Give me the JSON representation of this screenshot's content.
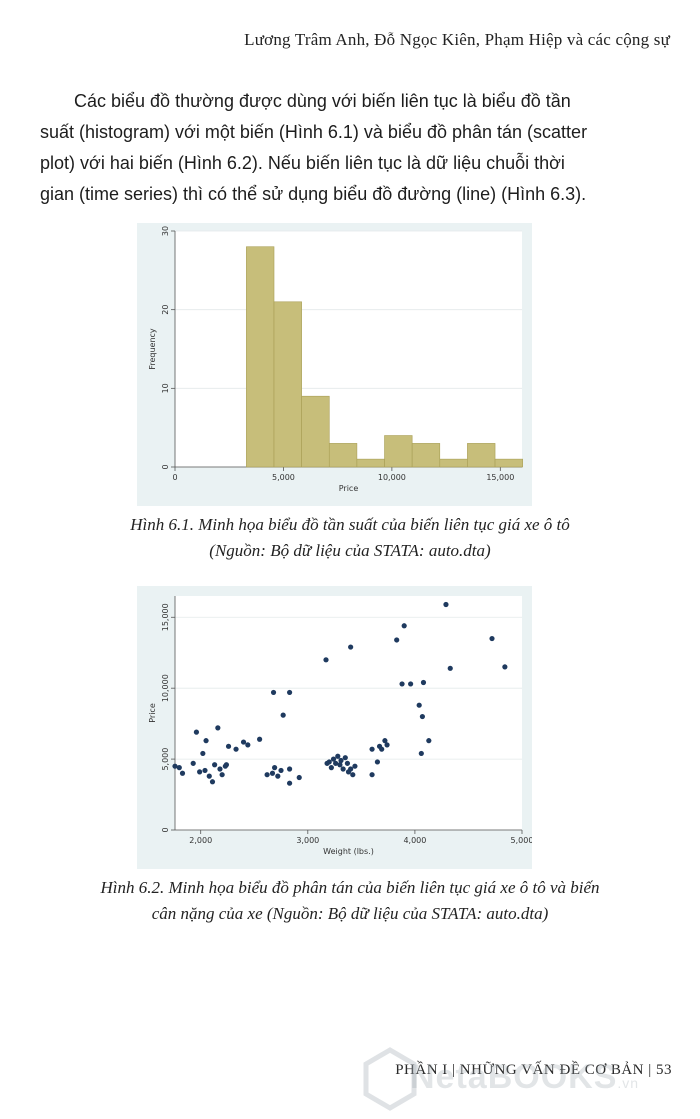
{
  "header": {
    "running_title": "Lương Trâm Anh, Đỗ Ngọc Kiên, Phạm Hiệp và các cộng sự"
  },
  "body": {
    "paragraph_lines": [
      "Các biểu đồ thường được dùng với biến liên tục là biểu đồ tần",
      "suất (histogram) với một biến (Hình 6.1) và biểu đồ phân tán (scatter",
      "plot) với hai biến (Hình 6.2). Nếu biến liên tục là dữ liệu chuỗi thời",
      "gian (time series) thì có thể sử dụng biểu đồ đường (line) (Hình 6.3)."
    ]
  },
  "captions": {
    "fig1_line1": "Hình 6.1. Minh họa biểu đồ tần suất của biến liên tục giá xe ô tô",
    "fig1_line2": "(Nguồn: Bộ dữ liệu của STATA: auto.dta)",
    "fig2_line1": "Hình 6.2. Minh họa biểu đồ phân tán của biến liên tục giá xe ô tô và biến",
    "fig2_line2": "cân nặng của xe (Nguồn: Bộ dữ liệu của STATA: auto.dta)"
  },
  "footer": {
    "text": "PHẦN I | NHỮNG VẤN ĐỀ CƠ BẢN | 53"
  },
  "watermark": {
    "text": "NetaBOOKS",
    "suffix": ".vn"
  },
  "colors": {
    "plot_background": "#eaf2f3",
    "histogram_bar": "#c7be7a",
    "histogram_bar_stroke": "#a89e55",
    "scatter_point": "#1f3a5f"
  },
  "chart_data": [
    {
      "type": "bar",
      "subtype": "histogram",
      "xlabel": "Price",
      "ylabel": "Frequency",
      "xlim": [
        0,
        16000
      ],
      "ylim": [
        0,
        30
      ],
      "x_ticks": [
        0,
        5000,
        10000,
        15000
      ],
      "x_tick_labels": [
        "0",
        "5,000",
        "10,000",
        "15,000"
      ],
      "y_ticks": [
        0,
        10,
        20,
        30
      ],
      "y_tick_labels": [
        "0",
        "10",
        "20",
        "30"
      ],
      "bin_start": 3291,
      "bin_width": 1274,
      "values": [
        28,
        21,
        9,
        3,
        1,
        4,
        3,
        1,
        3,
        1
      ]
    },
    {
      "type": "scatter",
      "xlabel": "Weight (lbs.)",
      "ylabel": "Price",
      "xlim": [
        1760,
        5000
      ],
      "ylim": [
        0,
        16500
      ],
      "x_ticks": [
        2000,
        3000,
        4000,
        5000
      ],
      "x_tick_labels": [
        "2,000",
        "3,000",
        "4,000",
        "5,000"
      ],
      "y_ticks": [
        0,
        5000,
        10000,
        15000
      ],
      "y_tick_labels": [
        "0",
        "5,000",
        "10,000",
        "15,000"
      ],
      "points": [
        [
          1760,
          4500
        ],
        [
          1800,
          4400
        ],
        [
          1830,
          4000
        ],
        [
          1930,
          4700
        ],
        [
          1960,
          6900
        ],
        [
          1990,
          4100
        ],
        [
          2020,
          5400
        ],
        [
          2040,
          4200
        ],
        [
          2050,
          6300
        ],
        [
          2080,
          3800
        ],
        [
          2110,
          3400
        ],
        [
          2130,
          4600
        ],
        [
          2160,
          7200
        ],
        [
          2180,
          4300
        ],
        [
          2200,
          3900
        ],
        [
          2230,
          4500
        ],
        [
          2240,
          4600
        ],
        [
          2260,
          5900
        ],
        [
          2330,
          5700
        ],
        [
          2400,
          6200
        ],
        [
          2440,
          6000
        ],
        [
          2550,
          6400
        ],
        [
          2620,
          3900
        ],
        [
          2670,
          4000
        ],
        [
          2680,
          9700
        ],
        [
          2690,
          4400
        ],
        [
          2720,
          3800
        ],
        [
          2750,
          4200
        ],
        [
          2770,
          8100
        ],
        [
          2830,
          9700
        ],
        [
          2830,
          3300
        ],
        [
          2830,
          4300
        ],
        [
          2920,
          3700
        ],
        [
          3170,
          12000
        ],
        [
          3180,
          4700
        ],
        [
          3200,
          4800
        ],
        [
          3220,
          4400
        ],
        [
          3240,
          5000
        ],
        [
          3260,
          4700
        ],
        [
          3280,
          5200
        ],
        [
          3300,
          4600
        ],
        [
          3310,
          4900
        ],
        [
          3330,
          4300
        ],
        [
          3350,
          5100
        ],
        [
          3370,
          4700
        ],
        [
          3380,
          4100
        ],
        [
          3400,
          4300
        ],
        [
          3400,
          12900
        ],
        [
          3420,
          3900
        ],
        [
          3440,
          4500
        ],
        [
          3600,
          3900
        ],
        [
          3600,
          5700
        ],
        [
          3650,
          4800
        ],
        [
          3670,
          5900
        ],
        [
          3690,
          5700
        ],
        [
          3720,
          6300
        ],
        [
          3740,
          6000
        ],
        [
          3830,
          13400
        ],
        [
          3880,
          10300
        ],
        [
          3900,
          14400
        ],
        [
          3960,
          10300
        ],
        [
          4040,
          8800
        ],
        [
          4060,
          5400
        ],
        [
          4070,
          8000
        ],
        [
          4080,
          10400
        ],
        [
          4130,
          6300
        ],
        [
          4290,
          15900
        ],
        [
          4330,
          11400
        ],
        [
          4720,
          13500
        ],
        [
          4840,
          11500
        ]
      ]
    }
  ]
}
